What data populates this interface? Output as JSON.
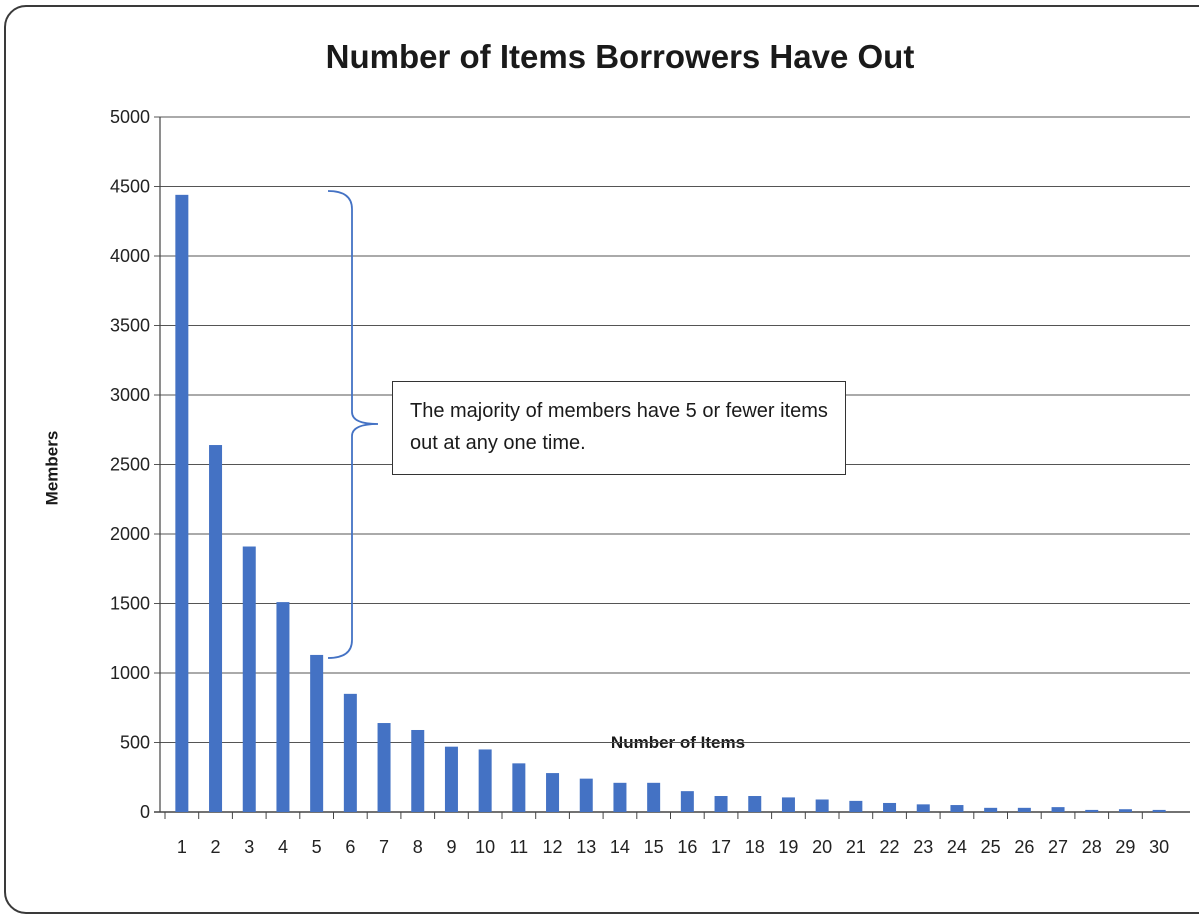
{
  "chart_data": {
    "type": "bar",
    "title": "Number of Items Borrowers Have Out",
    "xlabel": "Number of Items",
    "ylabel": "Members",
    "ylim": [
      0,
      5000
    ],
    "yticks": [
      0,
      500,
      1000,
      1500,
      2000,
      2500,
      3000,
      3500,
      4000,
      4500,
      5000
    ],
    "categories": [
      "1",
      "2",
      "3",
      "4",
      "5",
      "6",
      "7",
      "8",
      "9",
      "10",
      "11",
      "12",
      "13",
      "14",
      "15",
      "16",
      "17",
      "18",
      "19",
      "20",
      "21",
      "22",
      "23",
      "24",
      "25",
      "26",
      "27",
      "28",
      "29",
      "30"
    ],
    "values": [
      4440,
      2640,
      1910,
      1510,
      1130,
      850,
      640,
      590,
      470,
      450,
      350,
      280,
      240,
      210,
      210,
      150,
      115,
      115,
      105,
      90,
      80,
      65,
      55,
      50,
      30,
      30,
      35,
      15,
      20,
      15
    ],
    "grid": true,
    "bar_color": "#4472C4",
    "annotation": {
      "text": "The majority of members have 5 or fewer items out at any one time.",
      "bracket_color": "#4472C4"
    }
  }
}
